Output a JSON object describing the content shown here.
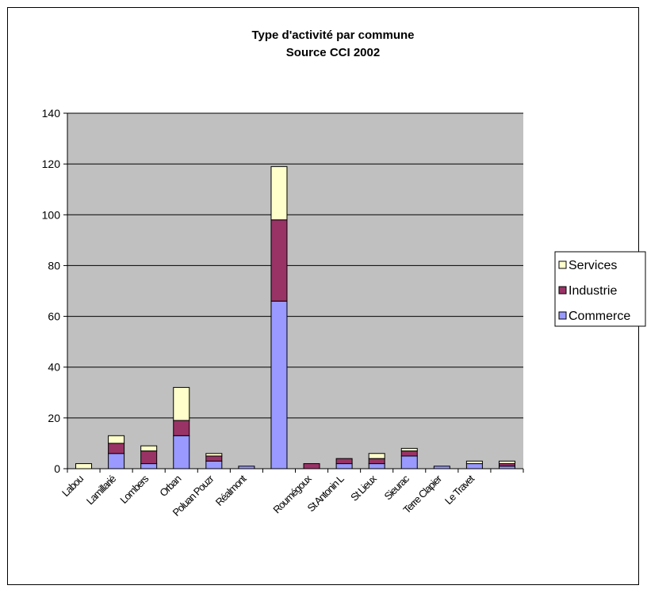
{
  "chart_data": {
    "type": "stacked_bar",
    "title": "Type d'activité par commune",
    "subtitle": "Source CCI 2002",
    "categories": [
      "Labou",
      "Lamillarié",
      "Lombers",
      "Orban",
      "Poluan Pouzr",
      "Réalmont",
      null,
      "Roumégoux",
      "St Antonin L",
      "St Lieux",
      "Sieurac",
      "Terre Clapier",
      "Le Travet",
      null
    ],
    "series": [
      {
        "name": "Commerce",
        "color": "#9999ff",
        "values": [
          0,
          6,
          2,
          13,
          3,
          1,
          66,
          0,
          2,
          2,
          5,
          1,
          2,
          1
        ]
      },
      {
        "name": "Industrie",
        "color": "#993366",
        "values": [
          0,
          4,
          5,
          6,
          2,
          0,
          32,
          2,
          2,
          2,
          2,
          0,
          0,
          1
        ]
      },
      {
        "name": "Services",
        "color": "#ffffcc",
        "values": [
          2,
          3,
          2,
          13,
          1,
          0,
          21,
          0,
          0,
          2,
          1,
          0,
          1,
          1
        ]
      }
    ],
    "ylim": [
      0,
      140
    ],
    "yticks": [
      0,
      20,
      40,
      60,
      80,
      100,
      120,
      140
    ],
    "grid": true,
    "legend": "right",
    "plot_background": "#c0c0c0"
  }
}
